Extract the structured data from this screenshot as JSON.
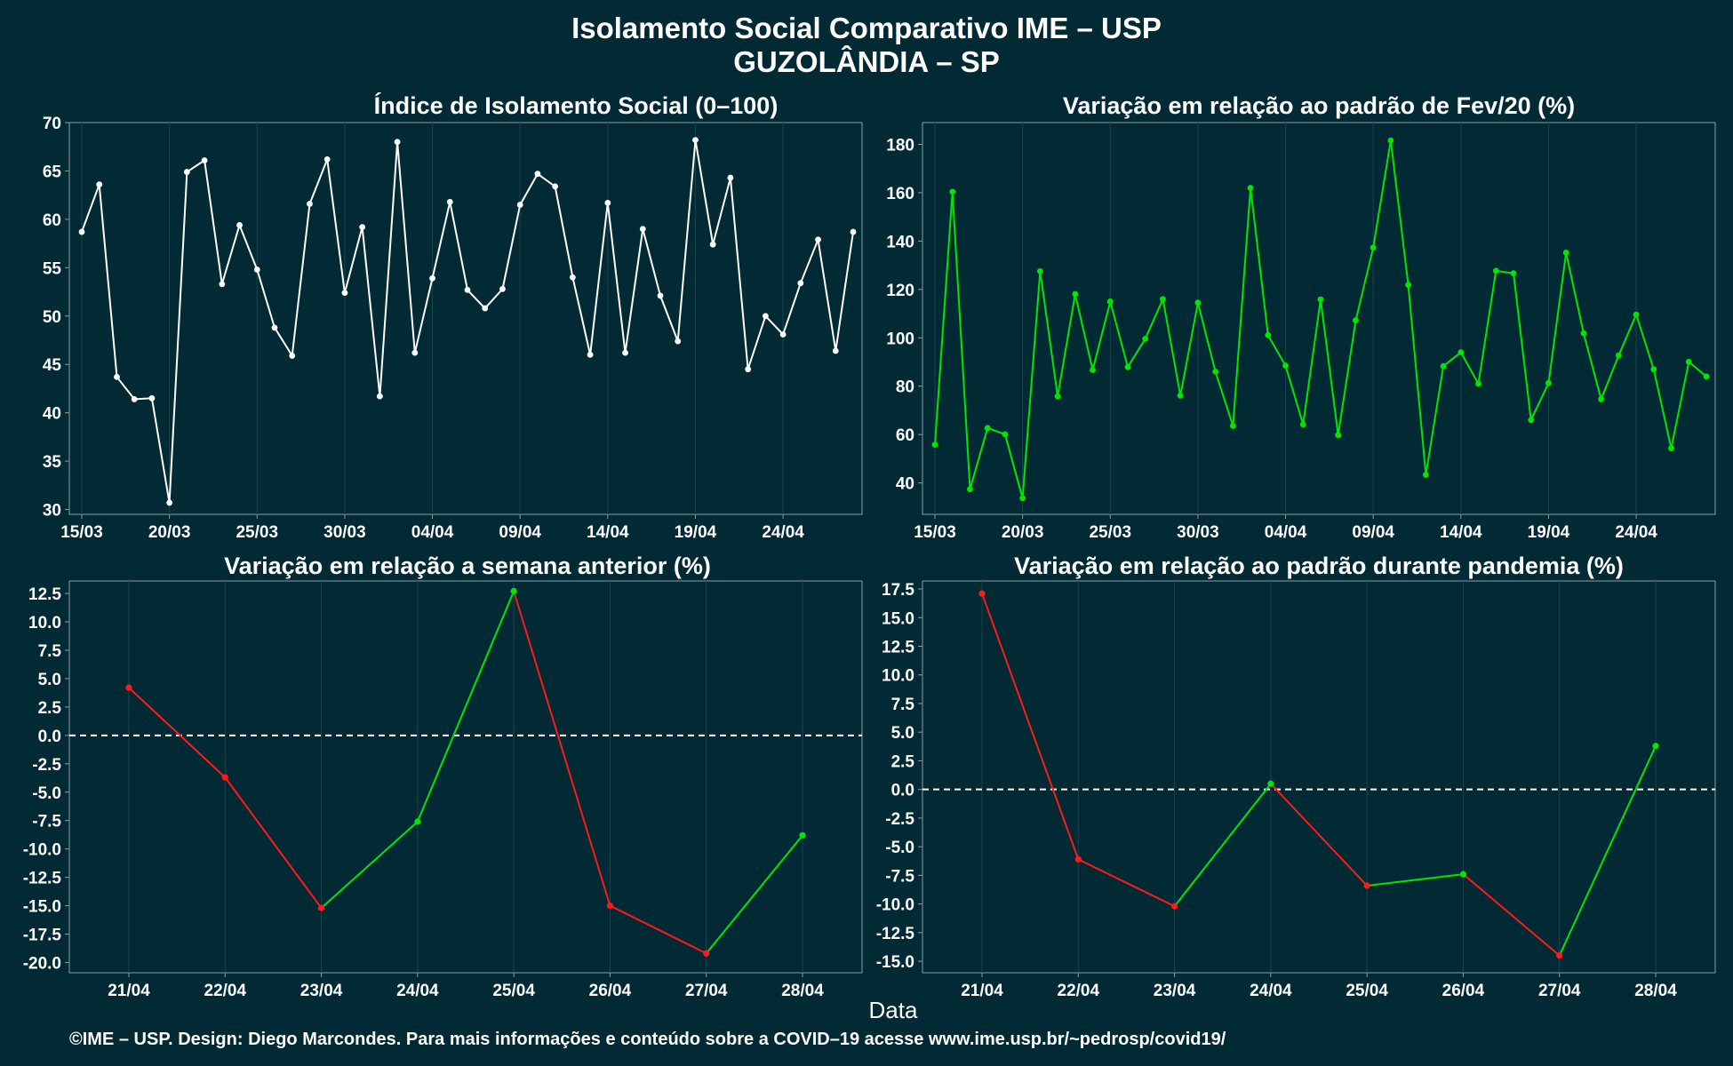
{
  "title_line1": "Isolamento Social Comparativo IME – USP",
  "title_line2": "GUZOLÂNDIA – SP",
  "xlabel": "Data",
  "footer": "©IME – USP. Design: Diego Marcondes. Para mais informações e conteúdo sobre a COVID–19 acesse www.ime.usp.br/~pedrosp/covid19/",
  "colors": {
    "background": "#022a35",
    "white_line": "#ffffff",
    "green": "#00e600",
    "red": "#ff1a1a"
  },
  "chart_data": [
    {
      "type": "line",
      "title": "Índice de Isolamento Social (0–100)",
      "start_date": "15/03",
      "x_ticks": [
        "15/03",
        "20/03",
        "25/03",
        "30/03",
        "04/04",
        "09/04",
        "14/04",
        "19/04",
        "24/04"
      ],
      "y_ticks": [
        30,
        35,
        40,
        45,
        50,
        55,
        60,
        65,
        70
      ],
      "ylim": [
        29.5,
        70
      ],
      "color": "#ffffff",
      "values": [
        58.7,
        63.6,
        43.7,
        41.4,
        41.5,
        30.7,
        64.9,
        66.1,
        53.3,
        59.4,
        54.8,
        48.8,
        45.9,
        61.6,
        66.2,
        52.4,
        59.2,
        41.7,
        68.0,
        46.2,
        53.9,
        61.8,
        52.7,
        50.8,
        52.8,
        61.5,
        64.7,
        63.4,
        54.0,
        46.0,
        61.7,
        46.2,
        59.0,
        52.1,
        47.4,
        68.2,
        57.4,
        64.3,
        44.5,
        50.0,
        48.1,
        53.4,
        57.9,
        46.4,
        58.7
      ]
    },
    {
      "type": "line",
      "title": "Variação em relação ao padrão de Fev/20 (%)",
      "start_date": "15/03",
      "x_ticks": [
        "15/03",
        "20/03",
        "25/03",
        "30/03",
        "04/04",
        "09/04",
        "14/04",
        "19/04",
        "24/04"
      ],
      "y_ticks": [
        40,
        60,
        80,
        100,
        120,
        140,
        160,
        180
      ],
      "ylim": [
        27,
        189
      ],
      "color": "#00e600",
      "values": [
        55.8,
        160.4,
        37.4,
        62.7,
        60.1,
        33.7,
        127.5,
        75.8,
        118.1,
        86.7,
        115.0,
        87.9,
        99.6,
        116.0,
        76.1,
        114.5,
        86.0,
        63.6,
        162.0,
        101.1,
        88.5,
        64.2,
        115.9,
        59.8,
        107.2,
        137.3,
        181.6,
        121.9,
        43.4,
        88.3,
        94.0,
        81.0,
        127.7,
        126.7,
        66.0,
        81.3,
        135.2,
        101.9,
        74.6,
        92.7,
        109.6,
        87.0,
        54.3,
        90.1,
        84.0
      ]
    },
    {
      "type": "line",
      "title": "Variação em relação a semana anterior (%)",
      "categories": [
        "21/04",
        "22/04",
        "23/04",
        "24/04",
        "25/04",
        "26/04",
        "27/04",
        "28/04"
      ],
      "values": [
        4.2,
        -3.7,
        -15.2,
        -7.6,
        12.7,
        -15.0,
        -19.2,
        -8.8
      ],
      "y_ticks": [
        -20.0,
        -17.5,
        -15.0,
        -12.5,
        -10.0,
        -7.5,
        -5.0,
        -2.5,
        0.0,
        2.5,
        5.0,
        7.5,
        10.0,
        12.5
      ],
      "ylim": [
        -20.9,
        13.6
      ],
      "reference_line": 0,
      "colors": {
        "up": "#00e600",
        "down": "#ff1a1a"
      }
    },
    {
      "type": "line",
      "title": "Variação em relação ao padrão durante pandemia (%)",
      "categories": [
        "21/04",
        "22/04",
        "23/04",
        "24/04",
        "25/04",
        "26/04",
        "27/04",
        "28/04"
      ],
      "values": [
        17.1,
        -6.1,
        -10.2,
        0.5,
        -8.4,
        -7.4,
        -14.5,
        3.8
      ],
      "y_ticks": [
        -15.0,
        -12.5,
        -10.0,
        -7.5,
        -5.0,
        -2.5,
        0.0,
        2.5,
        5.0,
        7.5,
        10.0,
        12.5,
        15.0,
        17.5
      ],
      "ylim": [
        -16.0,
        18.2
      ],
      "reference_line": 0,
      "colors": {
        "up": "#00e600",
        "down": "#ff1a1a"
      }
    }
  ]
}
